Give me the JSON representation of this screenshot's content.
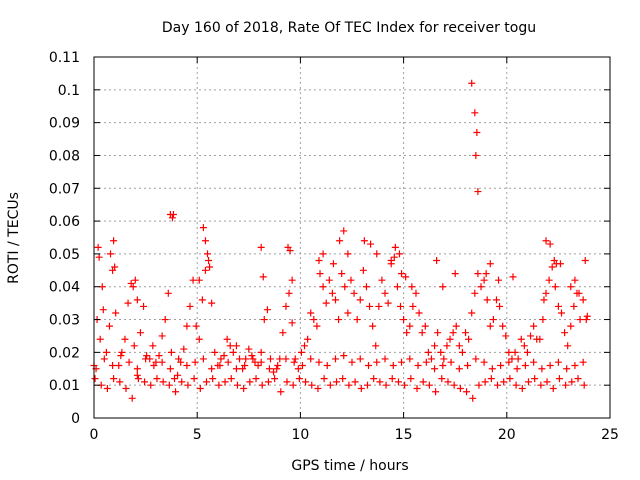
{
  "chart_data": {
    "type": "scatter",
    "title": "Day 160 of 2018, Rate Of TEC Index for receiver togu",
    "xlabel": "GPS time / hours",
    "ylabel": "ROTI / TECUs",
    "xlim": [
      0,
      25
    ],
    "ylim": [
      0,
      0.11
    ],
    "xticks": [
      0,
      5,
      10,
      15,
      20,
      25
    ],
    "xtick_labels": [
      "0",
      "5",
      "10",
      "15",
      "20",
      "25"
    ],
    "yticks": [
      0,
      0.01,
      0.02,
      0.03,
      0.04,
      0.05,
      0.06,
      0.07,
      0.08,
      0.09,
      0.1,
      0.11
    ],
    "ytick_labels": [
      "0",
      "0.01",
      "0.02",
      "0.03",
      "0.04",
      "0.05",
      "0.06",
      "0.07",
      "0.08",
      "0.09",
      "0.1",
      "0.11"
    ],
    "grid": true,
    "marker": "+",
    "color": "#ff0000",
    "series": [
      {
        "x": [
          0.0,
          0.15,
          0.3,
          0.45,
          0.6,
          0.75,
          0.9,
          1.05,
          1.2,
          1.35,
          1.5,
          1.65,
          1.8,
          1.95,
          2.1,
          2.25,
          2.4,
          2.55,
          2.7,
          2.85,
          3.0,
          3.15,
          3.3,
          3.45,
          3.6,
          3.75,
          3.9,
          4.05,
          4.2,
          4.35,
          4.5,
          4.65,
          4.8,
          4.95,
          5.1,
          5.25,
          5.4,
          5.55,
          5.7,
          5.85,
          6.0,
          6.15,
          6.3,
          6.45,
          6.6,
          6.75,
          6.9,
          7.05,
          7.2,
          7.35,
          7.5,
          7.65,
          7.8,
          7.95,
          8.1,
          8.25,
          8.4,
          8.55,
          8.7,
          8.85,
          9.0,
          9.15,
          9.3,
          9.45,
          9.6,
          9.75,
          9.9,
          10.05,
          10.2,
          10.35,
          10.5,
          10.65,
          10.8,
          10.95,
          11.1,
          11.25,
          11.4,
          11.55,
          11.7,
          11.85,
          12.0,
          12.15,
          12.3,
          12.45,
          12.6,
          12.75,
          12.9,
          13.05,
          13.2,
          13.35,
          13.5,
          13.65,
          13.8,
          13.95,
          14.1,
          14.25,
          14.4,
          14.55,
          14.7,
          14.85,
          15.0,
          15.15,
          15.3,
          15.45,
          15.6,
          15.75,
          15.9,
          16.05,
          16.2,
          16.35,
          16.5,
          16.65,
          16.8,
          16.95,
          17.1,
          17.25,
          17.4,
          17.55,
          17.7,
          17.85,
          18.0,
          18.15,
          18.3,
          18.45,
          18.6,
          18.75,
          18.9,
          19.05,
          19.2,
          19.35,
          19.5,
          19.65,
          19.8,
          19.95,
          20.1,
          20.25,
          20.4,
          20.55,
          20.7,
          20.85,
          21.0,
          21.15,
          21.3,
          21.45,
          21.6,
          21.75,
          21.9,
          22.05,
          22.2,
          22.35,
          22.5,
          22.65,
          22.8,
          22.95,
          23.1,
          23.25,
          23.4,
          23.55,
          23.7,
          23.85,
          0.05,
          0.35,
          0.65,
          0.95,
          1.25,
          1.55,
          1.85,
          2.15,
          2.45,
          2.75,
          3.05,
          3.35,
          3.65,
          3.95,
          4.25,
          4.55,
          4.85,
          5.15,
          5.45,
          5.75,
          6.05,
          6.35,
          6.65,
          6.95,
          7.25,
          7.55,
          7.85,
          8.15,
          8.45,
          8.75,
          9.05,
          9.35,
          9.65,
          9.95,
          10.25,
          10.55,
          10.85,
          11.15,
          11.45,
          11.75,
          12.05,
          12.35,
          12.65,
          12.95,
          13.25,
          13.55,
          13.85,
          14.15,
          14.45,
          14.75,
          15.05,
          15.35,
          15.65,
          15.95,
          16.25,
          16.55,
          16.85,
          17.15,
          17.45,
          17.75,
          18.05,
          18.35,
          18.65,
          18.95,
          19.25,
          19.55,
          19.85,
          20.15,
          20.45,
          20.75,
          21.05,
          21.35,
          21.65,
          21.95,
          22.25,
          22.55,
          22.85,
          23.15,
          23.45,
          23.75,
          0.1,
          0.5,
          0.9,
          1.3,
          1.7,
          2.1,
          2.5,
          2.9,
          3.3,
          3.7,
          4.1,
          4.5,
          4.9,
          5.3,
          5.7,
          6.1,
          6.5,
          6.9,
          7.3,
          7.7,
          8.1,
          8.5,
          8.9,
          9.3,
          9.7,
          10.1,
          10.5,
          10.9,
          11.3,
          11.7,
          12.1,
          12.5,
          12.9,
          13.3,
          13.7,
          14.1,
          14.5,
          14.9,
          15.3,
          15.7,
          16.1,
          16.5,
          16.9,
          17.3,
          17.7,
          18.1,
          18.5,
          18.9,
          19.3,
          19.7,
          20.1,
          20.5,
          20.9,
          21.3,
          21.7,
          22.1,
          22.5,
          22.9,
          23.3,
          23.7,
          0.2,
          0.25,
          0.4,
          0.8,
          0.95,
          1.0,
          1.9,
          2.0,
          2.1,
          3.7,
          3.8,
          3.85,
          5.1,
          5.3,
          5.4,
          5.5,
          5.6,
          8.1,
          8.2,
          9.4,
          9.5,
          9.6,
          10.9,
          11.1,
          11.6,
          11.9,
          12.1,
          12.3,
          13.1,
          13.4,
          13.7,
          14.4,
          14.6,
          14.8,
          14.9,
          15.1,
          15.4,
          16.6,
          16.9,
          17.5,
          18.3,
          18.45,
          18.5,
          18.55,
          18.6,
          19.0,
          19.2,
          19.6,
          20.3,
          21.8,
          21.9,
          22.1,
          22.3,
          22.4,
          22.6,
          23.1,
          23.3,
          23.5,
          23.8,
          23.9
        ],
        "y": [
          0.016,
          0.03,
          0.024,
          0.033,
          0.02,
          0.028,
          0.045,
          0.032,
          0.016,
          0.02,
          0.024,
          0.035,
          0.041,
          0.022,
          0.013,
          0.026,
          0.034,
          0.019,
          0.018,
          0.022,
          0.017,
          0.019,
          0.025,
          0.03,
          0.038,
          0.02,
          0.012,
          0.013,
          0.017,
          0.021,
          0.028,
          0.034,
          0.042,
          0.028,
          0.024,
          0.036,
          0.045,
          0.048,
          0.035,
          0.02,
          0.016,
          0.018,
          0.019,
          0.024,
          0.022,
          0.02,
          0.022,
          0.018,
          0.015,
          0.018,
          0.021,
          0.019,
          0.017,
          0.016,
          0.02,
          0.03,
          0.033,
          0.018,
          0.014,
          0.015,
          0.018,
          0.026,
          0.034,
          0.038,
          0.029,
          0.018,
          0.015,
          0.02,
          0.022,
          0.024,
          0.032,
          0.03,
          0.028,
          0.044,
          0.04,
          0.035,
          0.042,
          0.038,
          0.036,
          0.03,
          0.044,
          0.04,
          0.032,
          0.042,
          0.038,
          0.03,
          0.036,
          0.045,
          0.04,
          0.034,
          0.028,
          0.022,
          0.034,
          0.042,
          0.038,
          0.035,
          0.047,
          0.049,
          0.04,
          0.034,
          0.03,
          0.026,
          0.028,
          0.034,
          0.038,
          0.032,
          0.026,
          0.028,
          0.02,
          0.018,
          0.022,
          0.026,
          0.02,
          0.018,
          0.022,
          0.024,
          0.026,
          0.028,
          0.022,
          0.02,
          0.026,
          0.024,
          0.032,
          0.038,
          0.044,
          0.04,
          0.042,
          0.036,
          0.028,
          0.03,
          0.036,
          0.034,
          0.028,
          0.025,
          0.02,
          0.018,
          0.02,
          0.018,
          0.024,
          0.022,
          0.02,
          0.025,
          0.028,
          0.024,
          0.024,
          0.03,
          0.038,
          0.042,
          0.046,
          0.04,
          0.034,
          0.032,
          0.026,
          0.022,
          0.028,
          0.034,
          0.038,
          0.03,
          0.036,
          0.03,
          0.012,
          0.01,
          0.009,
          0.012,
          0.011,
          0.009,
          0.006,
          0.012,
          0.011,
          0.01,
          0.012,
          0.011,
          0.01,
          0.008,
          0.011,
          0.01,
          0.012,
          0.009,
          0.011,
          0.012,
          0.01,
          0.011,
          0.012,
          0.01,
          0.009,
          0.011,
          0.012,
          0.01,
          0.011,
          0.012,
          0.008,
          0.011,
          0.01,
          0.012,
          0.011,
          0.01,
          0.009,
          0.012,
          0.01,
          0.011,
          0.012,
          0.01,
          0.011,
          0.009,
          0.01,
          0.012,
          0.011,
          0.01,
          0.012,
          0.011,
          0.01,
          0.012,
          0.009,
          0.011,
          0.01,
          0.008,
          0.012,
          0.011,
          0.01,
          0.009,
          0.008,
          0.006,
          0.01,
          0.011,
          0.012,
          0.01,
          0.011,
          0.012,
          0.01,
          0.009,
          0.011,
          0.012,
          0.01,
          0.011,
          0.009,
          0.012,
          0.01,
          0.011,
          0.012,
          0.01,
          0.015,
          0.018,
          0.016,
          0.019,
          0.017,
          0.015,
          0.018,
          0.016,
          0.017,
          0.015,
          0.018,
          0.016,
          0.017,
          0.018,
          0.015,
          0.016,
          0.017,
          0.015,
          0.016,
          0.018,
          0.017,
          0.015,
          0.016,
          0.018,
          0.017,
          0.016,
          0.018,
          0.017,
          0.016,
          0.018,
          0.019,
          0.017,
          0.018,
          0.016,
          0.017,
          0.018,
          0.016,
          0.017,
          0.018,
          0.016,
          0.017,
          0.015,
          0.016,
          0.017,
          0.015,
          0.016,
          0.018,
          0.017,
          0.015,
          0.016,
          0.017,
          0.015,
          0.016,
          0.017,
          0.015,
          0.016,
          0.017,
          0.015,
          0.016,
          0.017,
          0.052,
          0.049,
          0.04,
          0.05,
          0.054,
          0.046,
          0.04,
          0.042,
          0.036,
          0.062,
          0.061,
          0.062,
          0.042,
          0.058,
          0.054,
          0.05,
          0.046,
          0.052,
          0.043,
          0.052,
          0.051,
          0.042,
          0.048,
          0.05,
          0.047,
          0.054,
          0.057,
          0.05,
          0.054,
          0.053,
          0.05,
          0.048,
          0.052,
          0.05,
          0.044,
          0.043,
          0.04,
          0.048,
          0.04,
          0.044,
          0.102,
          0.093,
          0.08,
          0.087,
          0.069,
          0.044,
          0.047,
          0.042,
          0.043,
          0.036,
          0.054,
          0.053,
          0.048,
          0.047,
          0.047,
          0.04,
          0.042,
          0.038,
          0.048,
          0.031
        ]
      }
    ]
  }
}
